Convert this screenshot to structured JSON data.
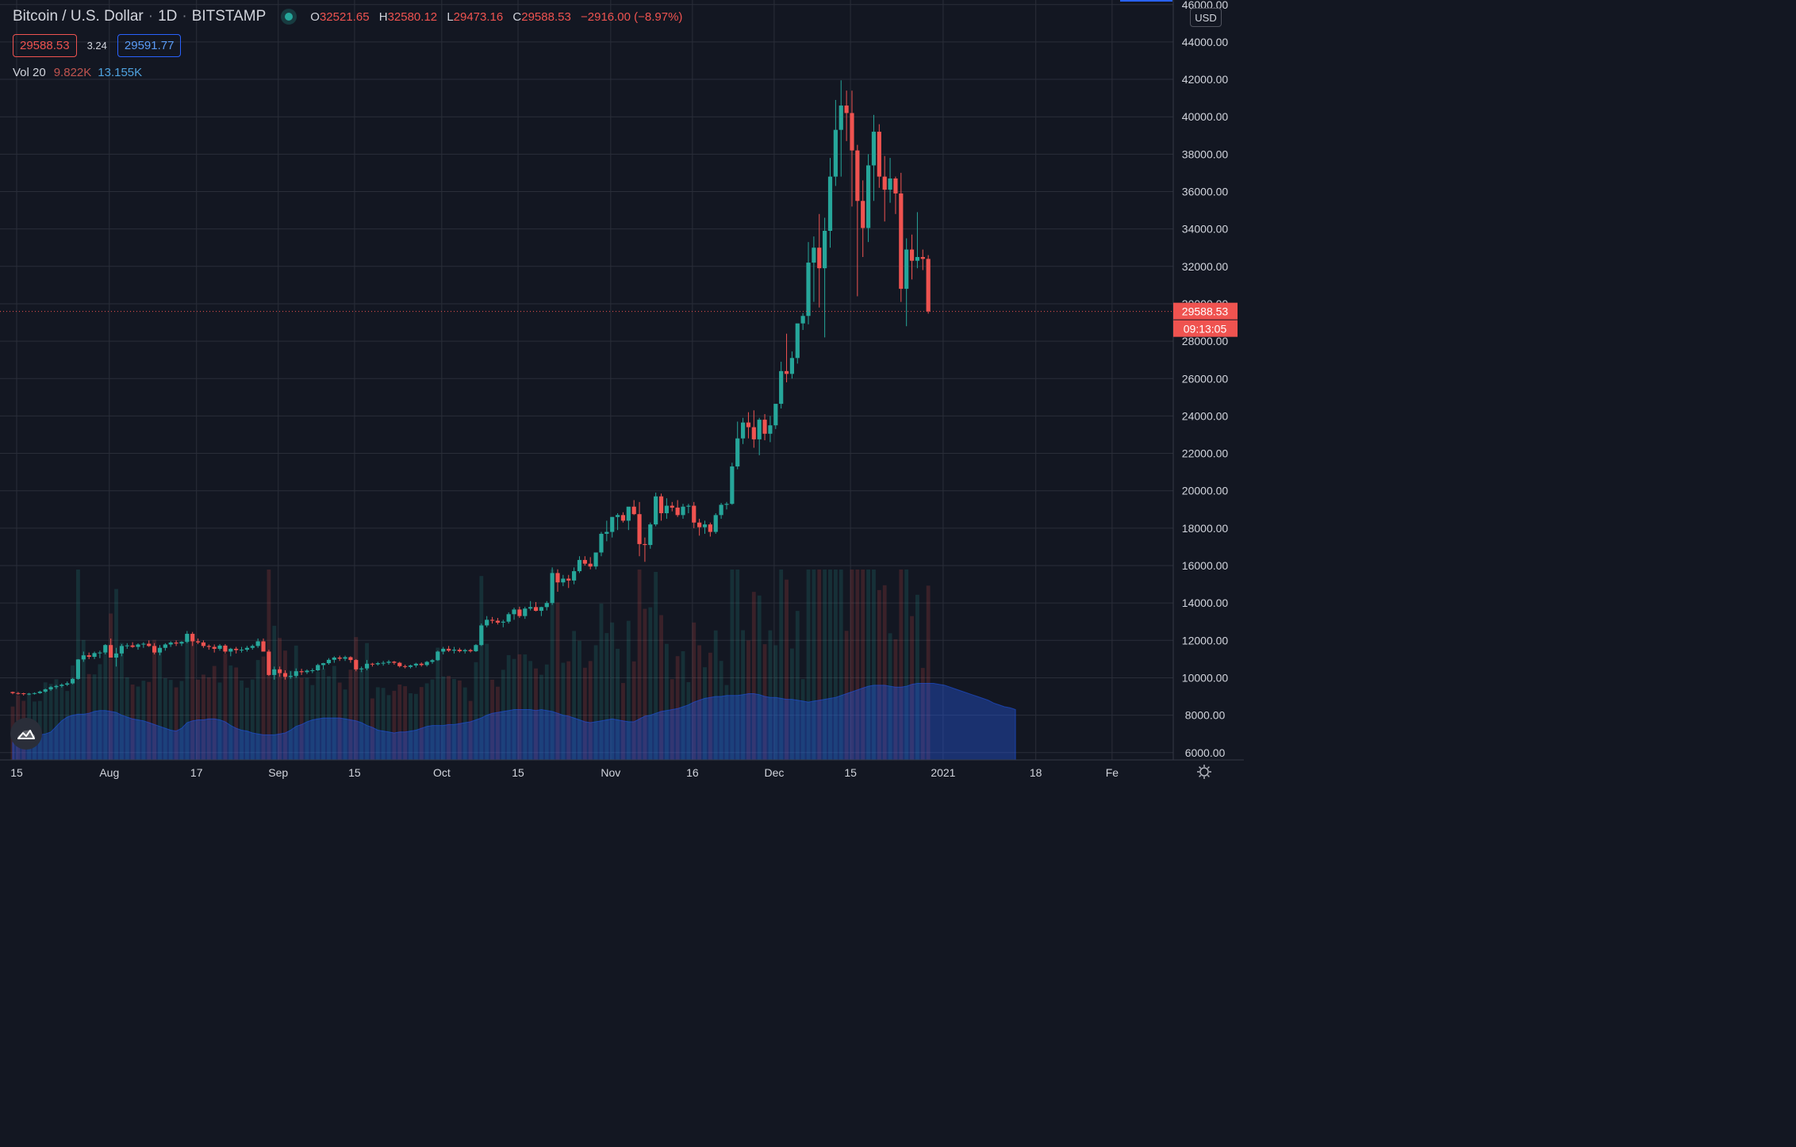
{
  "header": {
    "symbol": "Bitcoin / U.S. Dollar",
    "interval": "1D",
    "exchange": "BITSTAMP",
    "ohlc": {
      "o_label": "O",
      "o": "32521.65",
      "h_label": "H",
      "h": "32580.12",
      "l_label": "L",
      "l": "29473.16",
      "c_label": "C",
      "c": "29588.53",
      "change": "−2916.00 (−8.97%)"
    },
    "bid": "29588.53",
    "spread": "3.24",
    "ask": "29591.77",
    "volume": {
      "label": "Vol 20",
      "value1": "9.822K",
      "value2": "13.155K"
    }
  },
  "currency_button": "USD",
  "last_price_tag": {
    "price": "29588.53",
    "countdown": "09:13:05"
  },
  "colors": {
    "up": "#26a69a",
    "down": "#ef5350",
    "background": "#131722",
    "grid": "#2a2e39",
    "volume_ma": "#2962ff"
  },
  "icons": {
    "logo": "tradingview-cloud-icon",
    "settings": "gear-icon",
    "live": "live-dot-icon"
  },
  "chart_data": {
    "type": "candlestick",
    "symbol": "BTCUSD",
    "interval": "1D",
    "y_ticks": [
      6000,
      8000,
      10000,
      12000,
      14000,
      16000,
      18000,
      20000,
      22000,
      24000,
      26000,
      28000,
      30000,
      32000,
      34000,
      36000,
      38000,
      40000,
      42000,
      44000,
      46000
    ],
    "y_tick_labels": [
      "6000.00",
      "8000.00",
      "10000.00",
      "12000.00",
      "14000.00",
      "16000.00",
      "18000.00",
      "20000.00",
      "22000.00",
      "24000.00",
      "26000.00",
      "28000.00",
      "30000.00",
      "32000.00",
      "34000.00",
      "36000.00",
      "38000.00",
      "40000.00",
      "42000.00",
      "44000.00",
      "46000.00"
    ],
    "ylim": [
      5800,
      46000
    ],
    "x_labels": [
      {
        "text": "15",
        "day": 0
      },
      {
        "text": "Aug",
        "day": 17
      },
      {
        "text": "17",
        "day": 33
      },
      {
        "text": "Sep",
        "day": 48
      },
      {
        "text": "15",
        "day": 62
      },
      {
        "text": "Oct",
        "day": 78
      },
      {
        "text": "15",
        "day": 92
      },
      {
        "text": "Nov",
        "day": 109
      },
      {
        "text": "16",
        "day": 124
      },
      {
        "text": "Dec",
        "day": 139
      },
      {
        "text": "15",
        "day": 153
      },
      {
        "text": "2021",
        "day": 170
      },
      {
        "text": "18",
        "day": 187
      },
      {
        "text": "Fe",
        "day": 201
      }
    ],
    "candles_start": "2020-07-15",
    "candles_ohlc": [
      [
        9240,
        9260,
        9120,
        9180
      ],
      [
        9180,
        9240,
        9100,
        9170
      ],
      [
        9170,
        9200,
        9050,
        9140
      ],
      [
        9140,
        9190,
        9070,
        9150
      ],
      [
        9150,
        9220,
        9100,
        9180
      ],
      [
        9180,
        9310,
        9140,
        9260
      ],
      [
        9260,
        9420,
        9200,
        9380
      ],
      [
        9380,
        9560,
        9300,
        9500
      ],
      [
        9500,
        9620,
        9400,
        9560
      ],
      [
        9560,
        9700,
        9480,
        9630
      ],
      [
        9630,
        9800,
        9560,
        9700
      ],
      [
        9700,
        9990,
        9650,
        9940
      ],
      [
        9940,
        11000,
        9900,
        10980
      ],
      [
        10980,
        11400,
        10850,
        11200
      ],
      [
        11200,
        11350,
        11000,
        11120
      ],
      [
        11120,
        11400,
        11000,
        11320
      ],
      [
        11320,
        11450,
        11050,
        11350
      ],
      [
        11350,
        11800,
        11250,
        11750
      ],
      [
        11750,
        12100,
        11300,
        11080
      ],
      [
        11080,
        11600,
        10600,
        11300
      ],
      [
        11300,
        11800,
        11150,
        11700
      ],
      [
        11700,
        11850,
        11550,
        11730
      ],
      [
        11730,
        11900,
        11600,
        11650
      ],
      [
        11650,
        11840,
        11500,
        11780
      ],
      [
        11780,
        11900,
        11600,
        11820
      ],
      [
        11820,
        12000,
        11650,
        11700
      ],
      [
        11700,
        11850,
        11250,
        11350
      ],
      [
        11350,
        11750,
        11200,
        11600
      ],
      [
        11600,
        11850,
        11450,
        11780
      ],
      [
        11780,
        11950,
        11650,
        11880
      ],
      [
        11880,
        12000,
        11700,
        11830
      ],
      [
        11830,
        11960,
        11700,
        11920
      ],
      [
        11920,
        12500,
        11850,
        12350
      ],
      [
        12350,
        12450,
        11700,
        11950
      ],
      [
        11950,
        12100,
        11800,
        11890
      ],
      [
        11890,
        12000,
        11600,
        11700
      ],
      [
        11700,
        11780,
        11500,
        11650
      ],
      [
        11650,
        11780,
        11350,
        11550
      ],
      [
        11550,
        11800,
        11450,
        11720
      ],
      [
        11720,
        11800,
        11300,
        11400
      ],
      [
        11400,
        11600,
        11150,
        11550
      ],
      [
        11550,
        11650,
        11300,
        11480
      ],
      [
        11480,
        11650,
        11350,
        11500
      ],
      [
        11500,
        11700,
        11400,
        11600
      ],
      [
        11600,
        11780,
        11500,
        11700
      ],
      [
        11700,
        12100,
        11600,
        11950
      ],
      [
        11950,
        12100,
        11500,
        11400
      ],
      [
        11400,
        11500,
        10100,
        10150
      ],
      [
        10150,
        10600,
        9900,
        10450
      ],
      [
        10450,
        10600,
        10050,
        10250
      ],
      [
        10250,
        10400,
        9900,
        10050
      ],
      [
        10050,
        10350,
        9950,
        10100
      ],
      [
        10100,
        10500,
        10000,
        10350
      ],
      [
        10350,
        10480,
        10150,
        10300
      ],
      [
        10300,
        10450,
        10200,
        10380
      ],
      [
        10380,
        10500,
        10250,
        10400
      ],
      [
        10400,
        10750,
        10350,
        10680
      ],
      [
        10680,
        10800,
        10450,
        10780
      ],
      [
        10780,
        11050,
        10700,
        10960
      ],
      [
        10960,
        11150,
        10800,
        11080
      ],
      [
        11080,
        11180,
        10900,
        11020
      ],
      [
        11020,
        11180,
        10900,
        11100
      ],
      [
        11100,
        11150,
        10800,
        10950
      ],
      [
        10950,
        11000,
        10350,
        10450
      ],
      [
        10450,
        10600,
        10300,
        10500
      ],
      [
        10500,
        10950,
        10400,
        10750
      ],
      [
        10750,
        10800,
        10600,
        10720
      ],
      [
        10720,
        10850,
        10650,
        10780
      ],
      [
        10780,
        10900,
        10650,
        10800
      ],
      [
        10800,
        10950,
        10700,
        10860
      ],
      [
        10860,
        10900,
        10700,
        10800
      ],
      [
        10800,
        10850,
        10550,
        10620
      ],
      [
        10620,
        10700,
        10500,
        10580
      ],
      [
        10580,
        10700,
        10500,
        10660
      ],
      [
        10660,
        10800,
        10550,
        10750
      ],
      [
        10750,
        10820,
        10600,
        10680
      ],
      [
        10680,
        10900,
        10600,
        10850
      ],
      [
        10850,
        11000,
        10750,
        10940
      ],
      [
        10940,
        11450,
        10900,
        11400
      ],
      [
        11400,
        11650,
        11250,
        11550
      ],
      [
        11550,
        11700,
        11380,
        11450
      ],
      [
        11450,
        11650,
        11300,
        11500
      ],
      [
        11500,
        11600,
        11350,
        11420
      ],
      [
        11420,
        11550,
        11300,
        11480
      ],
      [
        11480,
        11550,
        11350,
        11420
      ],
      [
        11420,
        11800,
        11380,
        11750
      ],
      [
        11750,
        12900,
        11700,
        12800
      ],
      [
        12800,
        13300,
        12700,
        13100
      ],
      [
        13100,
        13250,
        12900,
        13050
      ],
      [
        13050,
        13200,
        12850,
        12950
      ],
      [
        12950,
        13100,
        12700,
        13000
      ],
      [
        13000,
        13500,
        12900,
        13400
      ],
      [
        13400,
        13750,
        13100,
        13650
      ],
      [
        13650,
        13800,
        13200,
        13300
      ],
      [
        13300,
        13800,
        13150,
        13700
      ],
      [
        13700,
        14100,
        13600,
        13780
      ],
      [
        13780,
        14050,
        13550,
        13580
      ],
      [
        13580,
        13800,
        13300,
        13780
      ],
      [
        13780,
        14100,
        13600,
        14000
      ],
      [
        14000,
        15900,
        13900,
        15600
      ],
      [
        15600,
        15800,
        14600,
        15100
      ],
      [
        15100,
        15500,
        14900,
        15300
      ],
      [
        15300,
        15500,
        14800,
        15200
      ],
      [
        15200,
        15900,
        15000,
        15700
      ],
      [
        15700,
        16500,
        15600,
        16300
      ],
      [
        16300,
        16500,
        16000,
        16100
      ],
      [
        16100,
        16450,
        15800,
        15950
      ],
      [
        15950,
        16700,
        15800,
        16700
      ],
      [
        16700,
        17800,
        16500,
        17700
      ],
      [
        17700,
        18400,
        17300,
        17800
      ],
      [
        17800,
        18600,
        17500,
        18600
      ],
      [
        18600,
        18800,
        17900,
        18700
      ],
      [
        18700,
        18850,
        18300,
        18400
      ],
      [
        18400,
        19100,
        17900,
        19150
      ],
      [
        19150,
        19500,
        18700,
        18750
      ],
      [
        18750,
        19400,
        16500,
        17150
      ],
      [
        17150,
        17500,
        16200,
        17100
      ],
      [
        17100,
        18300,
        16900,
        18200
      ],
      [
        18200,
        19900,
        18100,
        19700
      ],
      [
        19700,
        19850,
        18400,
        18800
      ],
      [
        18800,
        19600,
        18500,
        19200
      ],
      [
        19200,
        19400,
        18900,
        19100
      ],
      [
        19100,
        19500,
        18600,
        18700
      ],
      [
        18700,
        19300,
        18500,
        19150
      ],
      [
        19150,
        19300,
        18800,
        19200
      ],
      [
        19200,
        19400,
        18000,
        18300
      ],
      [
        18300,
        18500,
        17600,
        18050
      ],
      [
        18050,
        18400,
        17700,
        18200
      ],
      [
        18200,
        18300,
        17550,
        17800
      ],
      [
        17800,
        18800,
        17700,
        18700
      ],
      [
        18700,
        19350,
        18500,
        19250
      ],
      [
        19250,
        19400,
        19000,
        19300
      ],
      [
        19300,
        21500,
        19250,
        21300
      ],
      [
        21300,
        23700,
        21150,
        22800
      ],
      [
        22800,
        23900,
        22500,
        23650
      ],
      [
        23650,
        24200,
        22800,
        23400
      ],
      [
        23400,
        24300,
        22300,
        22750
      ],
      [
        22750,
        23900,
        21900,
        23800
      ],
      [
        23800,
        24100,
        22700,
        23050
      ],
      [
        23050,
        24000,
        22600,
        23500
      ],
      [
        23500,
        24600,
        23300,
        24650
      ],
      [
        24650,
        26900,
        24400,
        26400
      ],
      [
        26400,
        28400,
        25800,
        26250
      ],
      [
        26250,
        27450,
        26000,
        27100
      ],
      [
        27100,
        28800,
        26800,
        28950
      ],
      [
        28950,
        29500,
        28600,
        29350
      ],
      [
        29350,
        33300,
        28900,
        32200
      ],
      [
        32200,
        33600,
        30100,
        33000
      ],
      [
        33000,
        34800,
        29800,
        31900
      ],
      [
        31900,
        34600,
        28200,
        33900
      ],
      [
        33900,
        37800,
        33000,
        36800
      ],
      [
        36800,
        40900,
        36300,
        39300
      ],
      [
        39300,
        41950,
        36800,
        40600
      ],
      [
        40600,
        41400,
        38700,
        40200
      ],
      [
        40200,
        41400,
        35200,
        38200
      ],
      [
        38200,
        38500,
        30400,
        35500
      ],
      [
        35500,
        36600,
        32500,
        34050
      ],
      [
        34050,
        38000,
        33300,
        37400
      ],
      [
        37400,
        40100,
        35500,
        39200
      ],
      [
        39200,
        39600,
        36200,
        36800
      ],
      [
        36800,
        37900,
        34400,
        36100
      ],
      [
        36100,
        37800,
        35400,
        36700
      ],
      [
        36700,
        36800,
        34800,
        35900
      ],
      [
        35900,
        37000,
        30100,
        30800
      ],
      [
        30800,
        33500,
        28800,
        32900
      ],
      [
        32900,
        33700,
        31300,
        32300
      ],
      [
        32300,
        34900,
        31900,
        32500
      ],
      [
        32500,
        32900,
        31800,
        32400
      ],
      [
        32400,
        32600,
        29473,
        29588
      ]
    ],
    "volume_ma_points": [
      6800,
      6850,
      6900,
      6900,
      6950,
      6950,
      7000,
      7100,
      7400,
      7700,
      7900,
      8000,
      8050,
      8050,
      8100,
      8200,
      8250,
      8250,
      8200,
      8150,
      8000,
      7900,
      7800,
      7750,
      7700,
      7600,
      7500,
      7400,
      7300,
      7200,
      7150,
      7300,
      7600,
      7700,
      7750,
      7750,
      7800,
      7800,
      7750,
      7650,
      7450,
      7300,
      7200,
      7150,
      7050,
      7000,
      6950,
      6950,
      6950,
      7000,
      7050,
      7200,
      7400,
      7500,
      7650,
      7750,
      7800,
      7850,
      7850,
      7850,
      7850,
      7800,
      7750,
      7700,
      7600,
      7450,
      7350,
      7200,
      7150,
      7100,
      7050,
      7100,
      7100,
      7150,
      7200,
      7300,
      7400,
      7450,
      7450,
      7450,
      7500,
      7500,
      7550,
      7600,
      7650,
      7750,
      7850,
      8000,
      8100,
      8150,
      8200,
      8250,
      8300,
      8300,
      8300,
      8300,
      8250,
      8300,
      8250,
      8200,
      8100,
      8000,
      7950,
      7850,
      7750,
      7650,
      7600,
      7650,
      7700,
      7750,
      7800,
      7750,
      7700,
      7650,
      7650,
      7800,
      7950,
      8000,
      8100,
      8200,
      8250,
      8300,
      8350,
      8450,
      8550,
      8700,
      8800,
      8900,
      8950,
      9000,
      9000,
      9050,
      9050,
      9050,
      9100,
      9150,
      9150,
      9100,
      9000,
      8950,
      8950,
      8900,
      8850,
      8850,
      8800,
      8750,
      8700,
      8750,
      8800,
      8850,
      8900,
      8950,
      9050,
      9150,
      9250,
      9350,
      9450,
      9550,
      9600,
      9600,
      9600,
      9550,
      9500,
      9500,
      9550,
      9650,
      9700,
      9700,
      9700,
      9700,
      9650,
      9600,
      9500,
      9400,
      9300,
      9200,
      9100,
      9000,
      8900,
      8800,
      8650,
      8550,
      8450,
      8400,
      8300
    ]
  }
}
